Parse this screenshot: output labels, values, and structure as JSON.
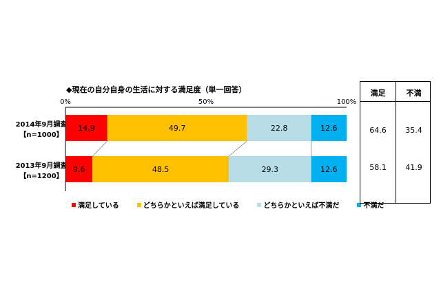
{
  "title": "◆現在の自分自身の生活に対する満足度（単一回答）",
  "chart_data": {
    "type": "bar",
    "orientation": "horizontal",
    "stacked": true,
    "percent_stacked": true,
    "xlim": [
      0,
      100
    ],
    "x_ticks": [
      "0%",
      "50%",
      "100%"
    ],
    "categories": [
      {
        "line1": "2014年9月調査",
        "line2": "【n=1000】"
      },
      {
        "line1": "2013年9月調査",
        "line2": "【n=1200】"
      }
    ],
    "series": [
      {
        "name": "満足している",
        "color": "#ff0000",
        "values": [
          14.9,
          9.6
        ],
        "labels": [
          "14.9",
          "9.6"
        ]
      },
      {
        "name": "どちらかといえば満足している",
        "color": "#ffc000",
        "values": [
          49.7,
          48.5
        ],
        "labels": [
          "49.7",
          "48.5"
        ]
      },
      {
        "name": "どちらかといえば不満だ",
        "color": "#b7dee8",
        "values": [
          22.8,
          29.3
        ],
        "labels": [
          "22.8",
          "29.3"
        ]
      },
      {
        "name": "不満だ",
        "color": "#00b0f0",
        "values": [
          12.6,
          12.6
        ],
        "labels": [
          "12.6",
          "12.6"
        ]
      }
    ],
    "grid": false,
    "connector_lines": true,
    "legend_position": "bottom"
  },
  "summary_table": {
    "headers": [
      "満足",
      "不満"
    ],
    "rows": [
      [
        "64.6",
        "35.4"
      ],
      [
        "58.1",
        "41.9"
      ]
    ]
  }
}
